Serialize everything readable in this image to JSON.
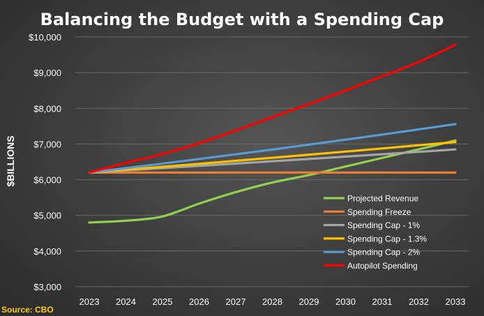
{
  "source": "Source: CBO",
  "chart_data": {
    "type": "line",
    "title": "Balancing the Budget with a Spending Cap",
    "xlabel": "",
    "ylabel": "$BILLIONS",
    "x": [
      "2023",
      "2024",
      "2025",
      "2026",
      "2027",
      "2028",
      "2029",
      "2030",
      "2031",
      "2032",
      "2033"
    ],
    "ylim": [
      3000,
      10000
    ],
    "yticks": [
      3000,
      4000,
      5000,
      6000,
      7000,
      8000,
      9000,
      10000
    ],
    "ytick_labels": [
      "$3,000",
      "$4,000",
      "$5,000",
      "$6,000",
      "$7,000",
      "$8,000",
      "$9,000",
      "$10,000"
    ],
    "grid": "horizontal",
    "legend_position": "bottom-right",
    "series": [
      {
        "name": "Projected Revenue",
        "color": "#92d050",
        "values": [
          4800,
          4850,
          4970,
          5330,
          5650,
          5920,
          6130,
          6370,
          6610,
          6850,
          7100
        ]
      },
      {
        "name": "Spending Freeze",
        "color": "#ed7d31",
        "values": [
          6200,
          6200,
          6200,
          6200,
          6200,
          6200,
          6200,
          6200,
          6200,
          6200,
          6200
        ]
      },
      {
        "name": "Spending Cap - 1%",
        "color": "#a5a5a5",
        "values": [
          6200,
          6262,
          6324,
          6387,
          6451,
          6516,
          6581,
          6647,
          6713,
          6780,
          6848
        ]
      },
      {
        "name": "Spending Cap - 1.3%",
        "color": "#ffc000",
        "values": [
          6200,
          6281,
          6362,
          6445,
          6529,
          6614,
          6700,
          6787,
          6875,
          6965,
          7055
        ]
      },
      {
        "name": "Spending Cap - 2%",
        "color": "#5b9bd5",
        "values": [
          6200,
          6324,
          6450,
          6579,
          6711,
          6845,
          6982,
          7122,
          7264,
          7410,
          7558
        ]
      },
      {
        "name": "Autopilot Spending",
        "color": "#ff0000",
        "values": [
          6200,
          6470,
          6720,
          7020,
          7380,
          7750,
          8120,
          8500,
          8900,
          9300,
          9780
        ]
      }
    ]
  }
}
